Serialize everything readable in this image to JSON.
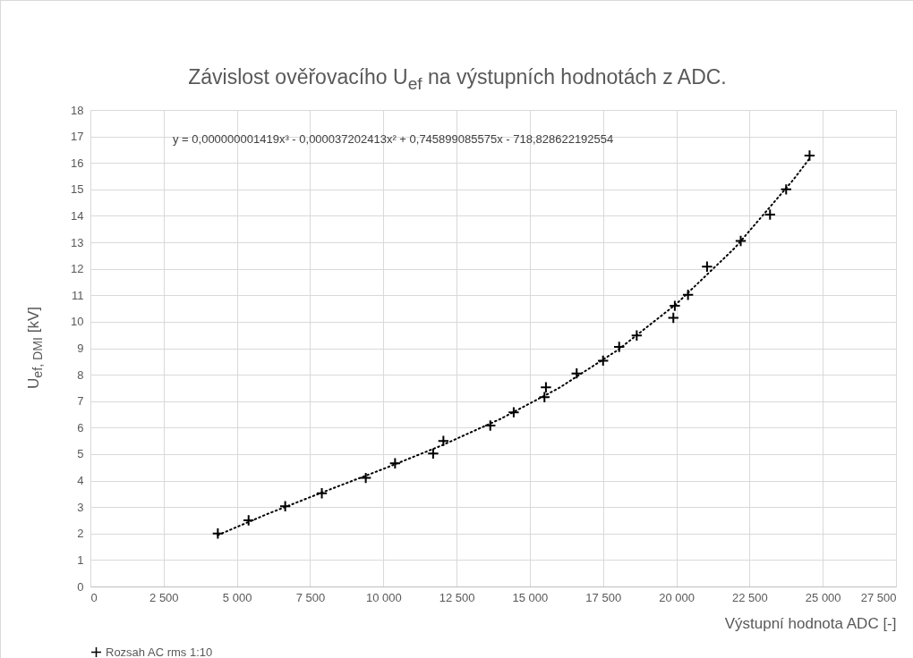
{
  "chart_data": {
    "type": "scatter",
    "title": "Závislost ověřovacího U$_{ef}$ na výstupních hodnotách z ADC.",
    "xlabel": "Výstupní hodnota ADC [-]",
    "ylabel": "U$_{ef, DMI}$ [kV]",
    "annotations": [
      "y = 0,000000001419x³ - 0,000037202413x² + 0,745899085575x - 718,828622192554"
    ],
    "xlim": [
      0,
      27500
    ],
    "xticks": [
      {
        "value": 0,
        "label": "0"
      },
      {
        "value": 2500,
        "label": "2 500"
      },
      {
        "value": 5000,
        "label": "5 000"
      },
      {
        "value": 7500,
        "label": "7 500"
      },
      {
        "value": 10000,
        "label": "10 000"
      },
      {
        "value": 12500,
        "label": "12 500"
      },
      {
        "value": 15000,
        "label": "15 000"
      },
      {
        "value": 17500,
        "label": "17 500"
      },
      {
        "value": 20000,
        "label": "20 000"
      },
      {
        "value": 22500,
        "label": "22 500"
      },
      {
        "value": 25000,
        "label": "25 000"
      },
      {
        "value": 27500,
        "label": "27 500"
      }
    ],
    "ylim": [
      0,
      18
    ],
    "yticks": [
      0,
      1,
      2,
      3,
      4,
      5,
      6,
      7,
      8,
      9,
      10,
      11,
      12,
      13,
      14,
      15,
      16,
      17,
      18
    ],
    "grid": true,
    "legend": "bottom",
    "series": [
      {
        "name": "Rozsah AC rms 1:10",
        "color": "#000000",
        "marker": "cross",
        "x": [
          4350,
          5400,
          6650,
          7900,
          9400,
          10400,
          11700,
          12050,
          13650,
          14450,
          15500,
          15550,
          16600,
          17500,
          18050,
          18650,
          19900,
          19950,
          20400,
          21050,
          22200,
          23200,
          23750,
          24550
        ],
        "values": [
          2.0,
          2.5,
          3.03,
          3.52,
          4.1,
          4.65,
          5.02,
          5.5,
          6.08,
          6.58,
          7.15,
          7.52,
          8.05,
          8.53,
          9.05,
          9.48,
          10.15,
          10.6,
          11.02,
          12.08,
          13.05,
          14.05,
          15.0,
          16.28
        ]
      },
      {
        "type": "line",
        "color": "#000000",
        "line_style": "dotted",
        "x": [
          4350,
          6000,
          8000,
          10000,
          12000,
          14000,
          16000,
          18000,
          20000,
          22000,
          24000,
          24550
        ],
        "values": [
          1.94,
          2.72,
          3.59,
          4.44,
          5.33,
          6.33,
          7.5,
          8.93,
          10.67,
          12.79,
          15.37,
          16.17
        ]
      }
    ]
  }
}
